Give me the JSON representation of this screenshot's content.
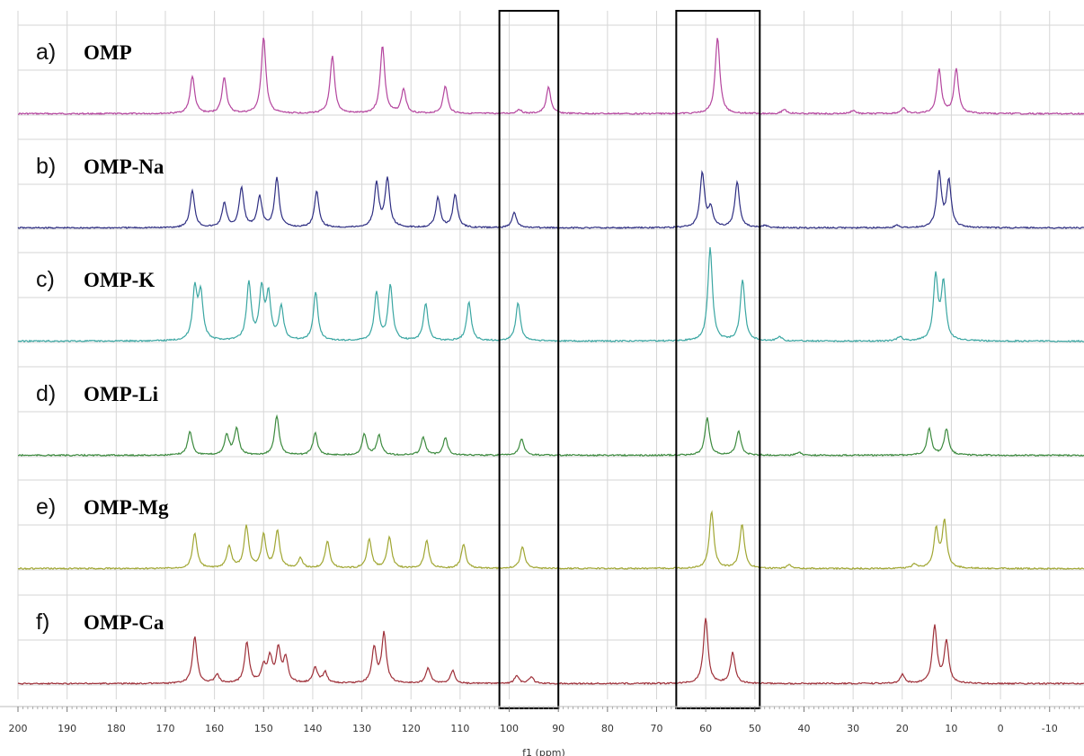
{
  "chart_data": {
    "type": "line",
    "title": "",
    "xlabel": "f1 (ppm)",
    "ylabel": "",
    "xlim": [
      200,
      -17
    ],
    "x_reversed": true,
    "x_ticks": [
      200,
      190,
      180,
      170,
      160,
      150,
      140,
      130,
      120,
      110,
      100,
      90,
      80,
      70,
      60,
      50,
      40,
      30,
      20,
      10,
      0,
      -10
    ],
    "tick_labels": [
      "200",
      "190",
      "180",
      "170",
      "160",
      "150",
      "140",
      "130",
      "120",
      "110",
      "100",
      "90",
      "80",
      "70",
      "60",
      "50",
      "40",
      "30",
      "20",
      "10",
      "0",
      "-10"
    ],
    "grid": true,
    "highlight_regions_ppm": [
      [
        102,
        90
      ],
      [
        66,
        49
      ]
    ],
    "series": [
      {
        "letter": "a)",
        "name": "OMP",
        "color": "#b4459e",
        "peaks": [
          [
            164.5,
            0.34
          ],
          [
            158,
            0.33
          ],
          [
            150,
            0.7
          ],
          [
            136,
            0.52
          ],
          [
            125.8,
            0.62
          ],
          [
            121.5,
            0.22
          ],
          [
            113,
            0.25
          ],
          [
            98,
            0.04
          ],
          [
            92,
            0.24
          ],
          [
            57.6,
            0.7
          ],
          [
            44,
            0.04
          ],
          [
            30,
            0.03
          ],
          [
            19.8,
            0.05
          ],
          [
            12.5,
            0.4
          ],
          [
            9,
            0.4
          ]
        ]
      },
      {
        "letter": "b)",
        "name": "OMP-Na",
        "color": "#2e2e82",
        "peaks": [
          [
            164.5,
            0.34
          ],
          [
            158,
            0.22
          ],
          [
            154.5,
            0.36
          ],
          [
            150.8,
            0.28
          ],
          [
            147.3,
            0.45
          ],
          [
            139.2,
            0.33
          ],
          [
            127,
            0.4
          ],
          [
            124.8,
            0.44
          ],
          [
            114.5,
            0.27
          ],
          [
            111,
            0.3
          ],
          [
            99,
            0.14
          ],
          [
            60.7,
            0.5
          ],
          [
            59,
            0.17
          ],
          [
            53.6,
            0.42
          ],
          [
            48,
            0.02
          ],
          [
            21,
            0.02
          ],
          [
            12.5,
            0.5
          ],
          [
            10.5,
            0.42
          ]
        ]
      },
      {
        "letter": "c)",
        "name": "OMP-K",
        "color": "#3aa6a2",
        "peaks": [
          [
            164,
            0.46
          ],
          [
            162.8,
            0.42
          ],
          [
            153,
            0.52
          ],
          [
            150.4,
            0.46
          ],
          [
            149,
            0.4
          ],
          [
            146.4,
            0.3
          ],
          [
            139.4,
            0.44
          ],
          [
            127,
            0.44
          ],
          [
            124.2,
            0.5
          ],
          [
            117,
            0.34
          ],
          [
            108.2,
            0.35
          ],
          [
            98.2,
            0.35
          ],
          [
            59.1,
            0.85
          ],
          [
            52.5,
            0.56
          ],
          [
            45,
            0.04
          ],
          [
            20.5,
            0.04
          ],
          [
            13.2,
            0.58
          ],
          [
            11.6,
            0.52
          ]
        ]
      },
      {
        "letter": "d)",
        "name": "OMP-Li",
        "color": "#3c8a3e",
        "peaks": [
          [
            165,
            0.22
          ],
          [
            157.5,
            0.18
          ],
          [
            155.5,
            0.24
          ],
          [
            147.3,
            0.36
          ],
          [
            139.5,
            0.2
          ],
          [
            129.5,
            0.19
          ],
          [
            126.5,
            0.18
          ],
          [
            117.5,
            0.16
          ],
          [
            113,
            0.16
          ],
          [
            97.5,
            0.15
          ],
          [
            59.7,
            0.34
          ],
          [
            53.3,
            0.22
          ],
          [
            41,
            0.03
          ],
          [
            14.5,
            0.24
          ],
          [
            11,
            0.24
          ]
        ]
      },
      {
        "letter": "e)",
        "name": "OMP-Mg",
        "color": "#a0a632",
        "peaks": [
          [
            164,
            0.32
          ],
          [
            157,
            0.2
          ],
          [
            153.5,
            0.38
          ],
          [
            150,
            0.3
          ],
          [
            147.2,
            0.34
          ],
          [
            142.5,
            0.09
          ],
          [
            137,
            0.25
          ],
          [
            128.5,
            0.26
          ],
          [
            124.4,
            0.28
          ],
          [
            116.8,
            0.25
          ],
          [
            109.3,
            0.22
          ],
          [
            97.3,
            0.2
          ],
          [
            58.8,
            0.52
          ],
          [
            52.6,
            0.4
          ],
          [
            43,
            0.03
          ],
          [
            17.5,
            0.04
          ],
          [
            13.1,
            0.35
          ],
          [
            11.4,
            0.42
          ]
        ]
      },
      {
        "letter": "f)",
        "name": "OMP-Ca",
        "color": "#9e2f38",
        "peaks": [
          [
            164,
            0.43
          ],
          [
            159.5,
            0.08
          ],
          [
            153.4,
            0.37
          ],
          [
            150,
            0.15
          ],
          [
            148.7,
            0.22
          ],
          [
            147,
            0.3
          ],
          [
            145.5,
            0.22
          ],
          [
            139.5,
            0.14
          ],
          [
            137.5,
            0.1
          ],
          [
            127.5,
            0.32
          ],
          [
            125.5,
            0.45
          ],
          [
            116.5,
            0.14
          ],
          [
            111.5,
            0.12
          ],
          [
            98.5,
            0.07
          ],
          [
            95.5,
            0.06
          ],
          [
            60,
            0.6
          ],
          [
            54.5,
            0.28
          ],
          [
            20,
            0.08
          ],
          [
            13.4,
            0.52
          ],
          [
            11,
            0.38
          ]
        ]
      }
    ]
  }
}
